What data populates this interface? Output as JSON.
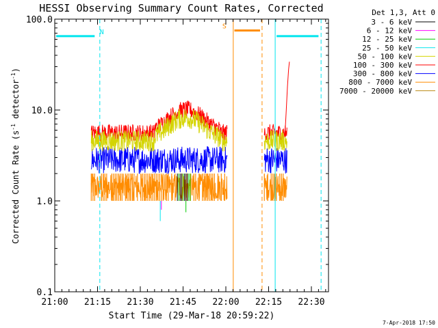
{
  "chart_data": {
    "type": "line",
    "title": "HESSI Observing Summary Count Rates, Corrected",
    "xlabel": "Start Time (29-Mar-18 20:59:22)",
    "ylabel_main": "Corrected Count Rate (s",
    "ylabel_exp1": "-1",
    "ylabel_mid": " detector",
    "ylabel_exp2": "-1",
    "ylabel_end": ")",
    "yscale": "log",
    "ylim": [
      0.1,
      100.0
    ],
    "xlim_minutes": [
      0,
      96
    ],
    "x_ticks": [
      {
        "m": 0,
        "label": "21:00"
      },
      {
        "m": 15,
        "label": "21:15"
      },
      {
        "m": 30,
        "label": "21:30"
      },
      {
        "m": 45,
        "label": "21:45"
      },
      {
        "m": 60,
        "label": "22:00"
      },
      {
        "m": 75,
        "label": "22:15"
      },
      {
        "m": 90,
        "label": "22:30"
      }
    ],
    "y_ticks": [
      {
        "v": 0.1,
        "label": "0.1"
      },
      {
        "v": 1.0,
        "label": "1.0"
      },
      {
        "v": 10.0,
        "label": "10.0"
      },
      {
        "v": 100.0,
        "label": "100.0"
      }
    ],
    "legend_title": "Det 1,3, Att 0",
    "series": [
      {
        "name": "3 - 6 keV",
        "color": "#000000"
      },
      {
        "name": "6 - 12 keV",
        "color": "#ff00ff"
      },
      {
        "name": "12 - 25 keV",
        "color": "#00cc00"
      },
      {
        "name": "25 - 50 keV",
        "color": "#00e5ee"
      },
      {
        "name": "50 - 100 keV",
        "color": "#d4d400"
      },
      {
        "name": "100 - 300 keV",
        "color": "#ff0000"
      },
      {
        "name": "300 - 800 keV",
        "color": "#0000ff"
      },
      {
        "name": "800 - 7000 keV",
        "color": "#ff8c00"
      },
      {
        "name": "7000 - 20000 keV",
        "color": "#b8860b"
      }
    ],
    "segments": [
      {
        "start": 12.8,
        "end": 60.5
      },
      {
        "start": 73.5,
        "end": 81.5
      }
    ],
    "band_levels": [
      {
        "color": "#ff8c00",
        "lo": 1.0,
        "hi": 2.0
      },
      {
        "color": "#0000ff",
        "lo": 2.0,
        "hi": 4.0
      },
      {
        "color": "#ff0000",
        "lo": 4.5,
        "hi": 7.0
      },
      {
        "color": "#d4d400",
        "lo": 3.5,
        "hi": 6.0
      }
    ],
    "red_flare_rise": [
      {
        "m": 80.8,
        "v": 6.0
      },
      {
        "m": 81.2,
        "v": 10.0
      },
      {
        "m": 81.6,
        "v": 18.0
      },
      {
        "m": 82.0,
        "v": 28.0
      },
      {
        "m": 82.3,
        "v": 34.0
      }
    ],
    "bursts": [
      {
        "m": 37.0,
        "v": 0.6,
        "color": "#00e5ee"
      },
      {
        "m": 37.4,
        "v": 0.8,
        "color": "#ff00ff"
      },
      {
        "m": 46.0,
        "v": 0.75,
        "color": "#00cc00"
      }
    ],
    "annotations": [
      {
        "label": "N",
        "color": "#00e5ee",
        "bar_start": 0.5,
        "bar_end": 14.0,
        "bar_y": 65.0,
        "label_m": 16.5
      },
      {
        "label": "S",
        "color": "#ff8c00",
        "bar_start": 63.0,
        "bar_end": 72.0,
        "bar_y": 75.0,
        "label_m": 59.5
      },
      {
        "label": "",
        "color": "#00e5ee",
        "bar_start": 77.8,
        "bar_end": 92.5,
        "bar_y": 65.0,
        "label_m": 0
      }
    ],
    "vlines": [
      {
        "m": 0.0,
        "color": "#00e5ee",
        "dash": false
      },
      {
        "m": 15.8,
        "color": "#00e5ee",
        "dash": true
      },
      {
        "m": 62.6,
        "color": "#ff8c00",
        "dash": false
      },
      {
        "m": 72.7,
        "color": "#ff8c00",
        "dash": true
      },
      {
        "m": 77.3,
        "color": "#00e5ee",
        "dash": false
      },
      {
        "m": 93.4,
        "color": "#00e5ee",
        "dash": true
      }
    ]
  },
  "footer_date": "7-Apr-2018 17:50"
}
